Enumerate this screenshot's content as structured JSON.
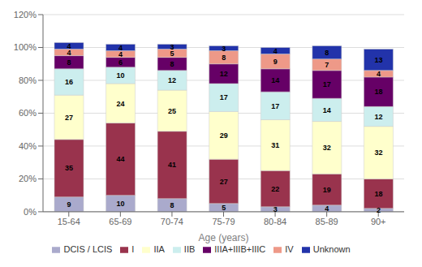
{
  "chart_data": {
    "type": "bar",
    "stacked": true,
    "xlabel": "Age (years)",
    "categories": [
      "15-64",
      "65-69",
      "70-74",
      "75-79",
      "80-84",
      "85-89",
      "90+"
    ],
    "series": [
      {
        "name": "DCIS / LCIS",
        "color": "#aaaacc",
        "values": [
          9,
          10,
          8,
          5,
          3,
          4,
          2
        ]
      },
      {
        "name": "I",
        "color": "#99334d",
        "values": [
          35,
          44,
          41,
          27,
          22,
          19,
          18
        ]
      },
      {
        "name": "IIA",
        "color": "#ffffcc",
        "values": [
          27,
          24,
          25,
          29,
          31,
          32,
          32
        ]
      },
      {
        "name": "IIB",
        "color": "#cceeee",
        "values": [
          16,
          10,
          12,
          17,
          17,
          14,
          12
        ]
      },
      {
        "name": "IIIA+IIIB+IIIC",
        "color": "#660066",
        "values": [
          8,
          6,
          8,
          12,
          14,
          17,
          18
        ]
      },
      {
        "name": "IV",
        "color": "#ee9988",
        "values": [
          4,
          4,
          5,
          8,
          9,
          7,
          4
        ]
      },
      {
        "name": "Unknown",
        "color": "#2233aa",
        "values": [
          4,
          4,
          3,
          3,
          4,
          8,
          13
        ]
      }
    ],
    "ylim": [
      0,
      120
    ],
    "yticks": [
      {
        "value": 0,
        "label": "0%"
      },
      {
        "value": 20,
        "label": "20%"
      },
      {
        "value": 40,
        "label": "40%"
      },
      {
        "value": 60,
        "label": "60%"
      },
      {
        "value": 80,
        "label": "80%"
      },
      {
        "value": 100,
        "label": "100%"
      },
      {
        "value": 120,
        "label": "120%"
      }
    ],
    "grid": true,
    "data_labels": true,
    "legend": "bottom"
  }
}
